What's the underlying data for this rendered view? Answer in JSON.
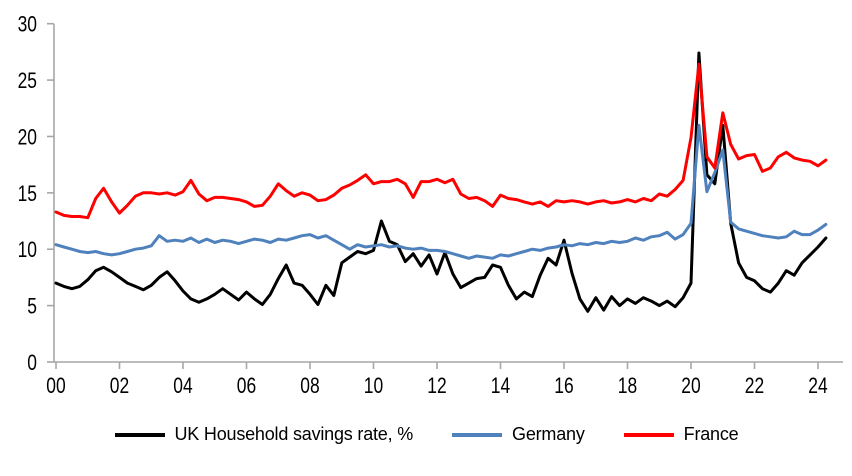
{
  "chart_data": {
    "type": "line",
    "title": "",
    "x_unit": "year (quarterly data)",
    "x_start_year": 2000,
    "x_step_years": 0.25,
    "x_tick_labels": [
      "00",
      "02",
      "04",
      "06",
      "08",
      "10",
      "12",
      "14",
      "16",
      "18",
      "20",
      "22",
      "24"
    ],
    "x_tick_years": [
      0,
      2,
      4,
      6,
      8,
      10,
      12,
      14,
      16,
      18,
      20,
      22,
      24
    ],
    "y_ticks": [
      0,
      5,
      10,
      15,
      20,
      25,
      30
    ],
    "ylim": [
      0,
      30
    ],
    "grid": false,
    "legend_position": "bottom",
    "axis_color": "#A6A6A6",
    "label_color": "#000000",
    "series": [
      {
        "name": "UK Household savings rate, %",
        "color": "#000000",
        "values": [
          7.0,
          6.7,
          6.5,
          6.7,
          7.3,
          8.1,
          8.4,
          8.0,
          7.5,
          7.0,
          6.7,
          6.4,
          6.8,
          7.5,
          8.0,
          7.2,
          6.3,
          5.6,
          5.3,
          5.6,
          6.0,
          6.5,
          6.0,
          5.5,
          6.2,
          5.6,
          5.1,
          6.0,
          7.4,
          8.6,
          7.0,
          6.8,
          6.0,
          5.1,
          6.8,
          5.9,
          8.8,
          9.3,
          9.8,
          9.6,
          9.9,
          12.5,
          10.7,
          10.4,
          8.9,
          9.6,
          8.5,
          9.5,
          7.8,
          9.7,
          7.8,
          6.6,
          7.0,
          7.4,
          7.5,
          8.6,
          8.4,
          6.8,
          5.6,
          6.2,
          5.8,
          7.7,
          9.2,
          8.6,
          10.8,
          7.9,
          5.6,
          4.5,
          5.7,
          4.6,
          5.8,
          5.0,
          5.6,
          5.2,
          5.7,
          5.4,
          5.0,
          5.4,
          4.9,
          5.7,
          7.0,
          27.4,
          16.6,
          15.8,
          21.0,
          12.3,
          8.8,
          7.5,
          7.2,
          6.5,
          6.2,
          7.0,
          8.1,
          7.7,
          8.8,
          9.5,
          10.2,
          11.0
        ]
      },
      {
        "name": "Germany",
        "color": "#4F81BD",
        "values": [
          10.4,
          10.2,
          10.0,
          9.8,
          9.7,
          9.8,
          9.6,
          9.5,
          9.6,
          9.8,
          10.0,
          10.1,
          10.3,
          11.2,
          10.7,
          10.8,
          10.7,
          11.0,
          10.6,
          10.9,
          10.6,
          10.8,
          10.7,
          10.5,
          10.7,
          10.9,
          10.8,
          10.6,
          10.9,
          10.8,
          11.0,
          11.2,
          11.3,
          11.0,
          11.2,
          10.8,
          10.4,
          10.0,
          10.4,
          10.2,
          10.3,
          10.4,
          10.2,
          10.3,
          10.1,
          10.0,
          10.1,
          9.9,
          9.9,
          9.8,
          9.6,
          9.4,
          9.2,
          9.4,
          9.3,
          9.2,
          9.5,
          9.4,
          9.6,
          9.8,
          10.0,
          9.9,
          10.1,
          10.2,
          10.4,
          10.3,
          10.5,
          10.4,
          10.6,
          10.5,
          10.7,
          10.6,
          10.7,
          11.0,
          10.8,
          11.1,
          11.2,
          11.5,
          10.9,
          11.3,
          12.3,
          21.0,
          15.1,
          16.8,
          18.8,
          12.4,
          11.8,
          11.6,
          11.4,
          11.2,
          11.1,
          11.0,
          11.1,
          11.6,
          11.3,
          11.3,
          11.7,
          12.2
        ]
      },
      {
        "name": "France",
        "color": "#FF0000",
        "values": [
          13.3,
          13.0,
          12.9,
          12.9,
          12.8,
          14.5,
          15.4,
          14.2,
          13.2,
          13.9,
          14.7,
          15.0,
          15.0,
          14.9,
          15.0,
          14.8,
          15.1,
          16.1,
          14.9,
          14.3,
          14.6,
          14.6,
          14.5,
          14.4,
          14.2,
          13.8,
          13.9,
          14.7,
          15.8,
          15.2,
          14.7,
          15.0,
          14.8,
          14.3,
          14.4,
          14.8,
          15.4,
          15.7,
          16.1,
          16.6,
          15.8,
          16.0,
          16.0,
          16.2,
          15.8,
          14.6,
          16.0,
          16.0,
          16.2,
          15.9,
          16.2,
          14.9,
          14.5,
          14.6,
          14.3,
          13.8,
          14.8,
          14.5,
          14.4,
          14.2,
          14.0,
          14.2,
          13.8,
          14.3,
          14.2,
          14.3,
          14.2,
          14.0,
          14.2,
          14.3,
          14.1,
          14.2,
          14.4,
          14.2,
          14.5,
          14.3,
          14.9,
          14.7,
          15.3,
          16.1,
          19.9,
          26.4,
          18.2,
          17.2,
          22.1,
          19.3,
          18.0,
          18.3,
          18.4,
          16.9,
          17.2,
          18.2,
          18.6,
          18.1,
          17.9,
          17.8,
          17.4,
          17.9
        ]
      }
    ]
  }
}
